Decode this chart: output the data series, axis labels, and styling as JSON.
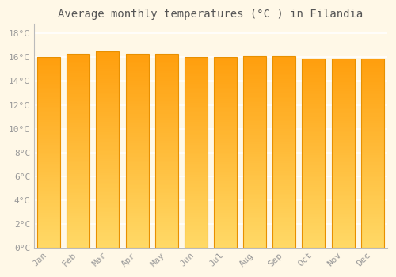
{
  "months": [
    "Jan",
    "Feb",
    "Mar",
    "Apr",
    "May",
    "Jun",
    "Jul",
    "Aug",
    "Sep",
    "Oct",
    "Nov",
    "Dec"
  ],
  "values": [
    16.0,
    16.3,
    16.5,
    16.3,
    16.3,
    16.0,
    16.0,
    16.1,
    16.1,
    15.9,
    15.9,
    15.9
  ],
  "bar_color": "#FFA500",
  "bar_color_light": "#FFD580",
  "bar_color_dark": "#F59B00",
  "bar_edge_color": "#E89000",
  "background_color": "#FFF8E7",
  "grid_color": "#FFFFFF",
  "title": "Average monthly temperatures (°C ) in Filandia",
  "title_fontsize": 10,
  "tick_label_color": "#999999",
  "tick_fontsize": 8,
  "ytick_labels": [
    "0°C",
    "2°C",
    "4°C",
    "6°C",
    "8°C",
    "10°C",
    "12°C",
    "14°C",
    "16°C",
    "18°C"
  ],
  "ytick_values": [
    0,
    2,
    4,
    6,
    8,
    10,
    12,
    14,
    16,
    18
  ],
  "ylim": [
    0,
    18.8
  ],
  "title_color": "#555555"
}
